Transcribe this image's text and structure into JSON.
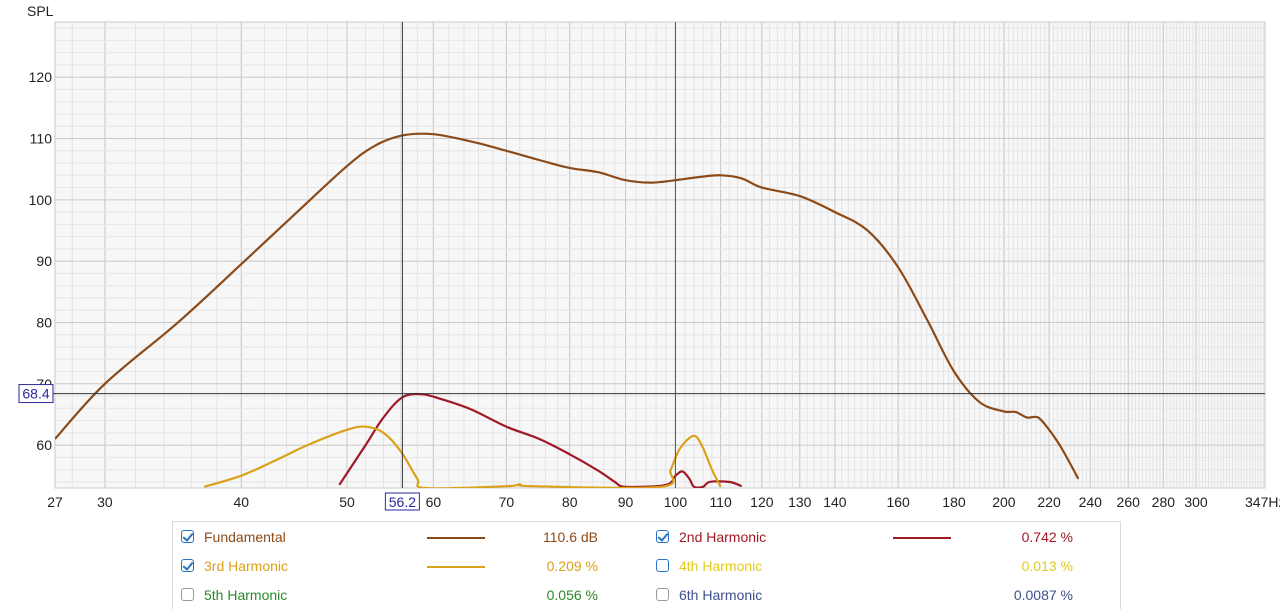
{
  "chart_data": {
    "type": "line",
    "title": "",
    "ylabel": "SPL",
    "x_unit": "Hz",
    "x_scale": "log",
    "xlim": [
      27,
      347
    ],
    "ylim": [
      53,
      129
    ],
    "grid": true,
    "y_ticks": [
      60,
      70,
      80,
      90,
      100,
      110,
      120
    ],
    "x_ticks": [
      27,
      30,
      40,
      50,
      60,
      70,
      80,
      90,
      100,
      110,
      120,
      130,
      140,
      160,
      180,
      200,
      220,
      240,
      260,
      280,
      300,
      347
    ],
    "x_tick_labels": [
      "27",
      "30",
      "40",
      "50",
      "60",
      "70",
      "80",
      "90",
      "100",
      "110",
      "120",
      "130",
      "140",
      "160",
      "180",
      "200",
      "220",
      "240",
      "260",
      "280",
      "300",
      "347Hz"
    ],
    "cursor": {
      "x": 56.2,
      "y": 68.4,
      "x_label": "56.2",
      "y_label": "68.4"
    },
    "series": [
      {
        "name": "Fundamental",
        "color": "#8b4a17",
        "points": [
          [
            27,
            61
          ],
          [
            30,
            70
          ],
          [
            35,
            80
          ],
          [
            40,
            89.5
          ],
          [
            45,
            98
          ],
          [
            50,
            105.5
          ],
          [
            53,
            108.8
          ],
          [
            56.2,
            110.5
          ],
          [
            60,
            110.7
          ],
          [
            65,
            109.5
          ],
          [
            70,
            108
          ],
          [
            75,
            106.5
          ],
          [
            80,
            105.2
          ],
          [
            85,
            104.5
          ],
          [
            90,
            103.2
          ],
          [
            95,
            102.8
          ],
          [
            100,
            103.2
          ],
          [
            105,
            103.7
          ],
          [
            110,
            104
          ],
          [
            115,
            103.5
          ],
          [
            120,
            102
          ],
          [
            130,
            100.6
          ],
          [
            140,
            98
          ],
          [
            150,
            95
          ],
          [
            160,
            89
          ],
          [
            170,
            80.5
          ],
          [
            180,
            72
          ],
          [
            190,
            67
          ],
          [
            200,
            65.5
          ],
          [
            205,
            65.4
          ],
          [
            210,
            64.5
          ],
          [
            215,
            64.5
          ],
          [
            220,
            62.5
          ],
          [
            225,
            60
          ],
          [
            230,
            57
          ],
          [
            234,
            54.5
          ]
        ]
      },
      {
        "name": "2nd Harmonic",
        "color": "#a01827",
        "points": [
          [
            49.2,
            53.5
          ],
          [
            52,
            60
          ],
          [
            54,
            64.5
          ],
          [
            56.2,
            67.8
          ],
          [
            58.5,
            68.3
          ],
          [
            61,
            67.5
          ],
          [
            65,
            65.8
          ],
          [
            70,
            63
          ],
          [
            75,
            61
          ],
          [
            80,
            58.5
          ],
          [
            85,
            55.8
          ],
          [
            88,
            54
          ],
          [
            90,
            53.2
          ],
          [
            98,
            53.5
          ],
          [
            100,
            55
          ],
          [
            101.5,
            55.7
          ],
          [
            103,
            54.5
          ],
          [
            104,
            53.2
          ],
          [
            106,
            53.2
          ],
          [
            107.5,
            54
          ],
          [
            112,
            54
          ],
          [
            115,
            53.3
          ]
        ]
      },
      {
        "name": "3rd Harmonic",
        "color": "#d9a21a",
        "points": [
          [
            37,
            53.2
          ],
          [
            40,
            55
          ],
          [
            43,
            57.5
          ],
          [
            46,
            60
          ],
          [
            50,
            62.5
          ],
          [
            52,
            63
          ],
          [
            54,
            62
          ],
          [
            56,
            59
          ],
          [
            58,
            54.5
          ],
          [
            59,
            53
          ],
          [
            70,
            53.3
          ],
          [
            72,
            53.6
          ],
          [
            74,
            53.3
          ],
          [
            97,
            53.2
          ],
          [
            99,
            56
          ],
          [
            101,
            59.5
          ],
          [
            104,
            61.5
          ],
          [
            106,
            59.5
          ],
          [
            108,
            56
          ],
          [
            110,
            53.2
          ]
        ]
      },
      {
        "name": "4th Harmonic",
        "color": "#e2cb1e",
        "points": []
      },
      {
        "name": "5th Harmonic",
        "color": "#2a8a2a",
        "points": []
      },
      {
        "name": "6th Harmonic",
        "color": "#3d4f8c",
        "points": []
      }
    ]
  },
  "legend": {
    "items": [
      {
        "name": "Fundamental",
        "value": "110.6 dB",
        "checked": true,
        "color": "#8b4a17",
        "show_line": true
      },
      {
        "name": "2nd Harmonic",
        "value": "0.742 %",
        "checked": true,
        "color": "#a01827",
        "show_line": true
      },
      {
        "name": "3rd Harmonic",
        "value": "0.209 %",
        "checked": true,
        "color": "#d9a21a",
        "show_line": true
      },
      {
        "name": "4th Harmonic",
        "value": "0.013 %",
        "checked": false,
        "color": "#e2cb1e",
        "show_line": false,
        "focused": true
      },
      {
        "name": "5th Harmonic",
        "value": "0.056 %",
        "checked": false,
        "color": "#2a8a2a",
        "show_line": false
      },
      {
        "name": "6th Harmonic",
        "value": "0.0087 %",
        "checked": false,
        "color": "#3d4f8c",
        "show_line": false
      }
    ]
  }
}
